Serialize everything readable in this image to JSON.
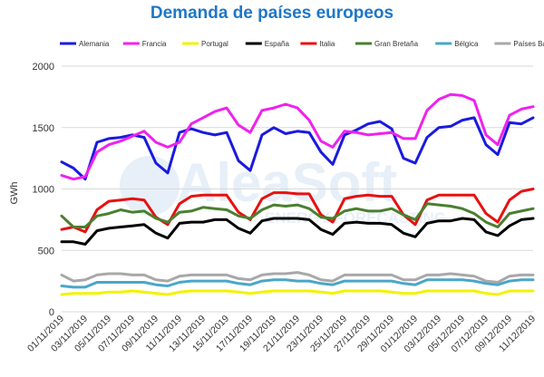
{
  "chart_data": {
    "type": "line",
    "title": "Demanda de países europeos",
    "ylabel": "GWh",
    "ylim": [
      0,
      2000
    ],
    "yticks": [
      0,
      500,
      1000,
      1500,
      2000
    ],
    "grid": "horizontal",
    "legend_position": "top",
    "watermark": {
      "brand": "AleaSoft",
      "tagline": "ENERGY FORECASTING"
    },
    "x_tick_labels": [
      "01/11/2019",
      "03/11/2019",
      "05/11/2019",
      "07/11/2019",
      "09/11/2019",
      "11/11/2019",
      "13/11/2019",
      "15/11/2019",
      "17/11/2019",
      "19/11/2019",
      "21/11/2019",
      "23/11/2019",
      "25/11/2019",
      "27/11/2019",
      "29/11/2019",
      "01/12/2019",
      "03/12/2019",
      "05/12/2019",
      "07/12/2019",
      "09/12/2019",
      "11/12/2019"
    ],
    "x": [
      "01/11/2019",
      "02/11/2019",
      "03/11/2019",
      "04/11/2019",
      "05/11/2019",
      "06/11/2019",
      "07/11/2019",
      "08/11/2019",
      "09/11/2019",
      "10/11/2019",
      "11/11/2019",
      "12/11/2019",
      "13/11/2019",
      "14/11/2019",
      "15/11/2019",
      "16/11/2019",
      "17/11/2019",
      "18/11/2019",
      "19/11/2019",
      "20/11/2019",
      "21/11/2019",
      "22/11/2019",
      "23/11/2019",
      "24/11/2019",
      "25/11/2019",
      "26/11/2019",
      "27/11/2019",
      "28/11/2019",
      "29/11/2019",
      "30/11/2019",
      "01/12/2019",
      "02/12/2019",
      "03/12/2019",
      "04/12/2019",
      "05/12/2019",
      "06/12/2019",
      "07/12/2019",
      "08/12/2019",
      "09/12/2019",
      "10/12/2019",
      "11/12/2019"
    ],
    "series": [
      {
        "name": "Alemania",
        "color": "#1a1adf",
        "values": [
          1220,
          1170,
          1080,
          1380,
          1410,
          1420,
          1440,
          1420,
          1210,
          1130,
          1460,
          1490,
          1460,
          1440,
          1460,
          1230,
          1150,
          1440,
          1500,
          1450,
          1470,
          1460,
          1300,
          1200,
          1440,
          1480,
          1530,
          1550,
          1490,
          1250,
          1210,
          1420,
          1500,
          1510,
          1560,
          1580,
          1360,
          1280,
          1540,
          1530,
          1580
        ]
      },
      {
        "name": "Francia",
        "color": "#ee22ee",
        "values": [
          1110,
          1080,
          1100,
          1300,
          1360,
          1390,
          1430,
          1470,
          1380,
          1340,
          1380,
          1530,
          1580,
          1630,
          1660,
          1520,
          1460,
          1640,
          1660,
          1690,
          1660,
          1560,
          1390,
          1340,
          1470,
          1460,
          1440,
          1450,
          1460,
          1410,
          1410,
          1640,
          1730,
          1770,
          1760,
          1720,
          1440,
          1360,
          1600,
          1650,
          1670
        ]
      },
      {
        "name": "Portugal",
        "color": "#f2f200",
        "values": [
          140,
          150,
          150,
          150,
          160,
          160,
          170,
          160,
          150,
          140,
          160,
          170,
          170,
          170,
          170,
          160,
          150,
          160,
          170,
          170,
          170,
          170,
          160,
          150,
          170,
          170,
          170,
          170,
          160,
          150,
          150,
          170,
          170,
          170,
          170,
          170,
          150,
          140,
          170,
          170,
          170
        ]
      },
      {
        "name": "España",
        "color": "#000000",
        "values": [
          570,
          570,
          550,
          660,
          680,
          690,
          700,
          710,
          640,
          600,
          720,
          730,
          730,
          750,
          750,
          680,
          640,
          740,
          760,
          760,
          760,
          750,
          670,
          630,
          720,
          730,
          720,
          720,
          710,
          640,
          610,
          720,
          740,
          740,
          760,
          750,
          650,
          620,
          700,
          750,
          760
        ]
      },
      {
        "name": "Italia",
        "color": "#e81010",
        "values": [
          670,
          690,
          650,
          830,
          900,
          910,
          920,
          910,
          770,
          710,
          880,
          940,
          950,
          950,
          950,
          810,
          750,
          920,
          970,
          970,
          960,
          960,
          790,
          730,
          920,
          940,
          950,
          940,
          940,
          790,
          710,
          910,
          950,
          950,
          950,
          950,
          800,
          730,
          910,
          980,
          1000
        ]
      },
      {
        "name": "Gran Bretaña",
        "color": "#4a7f2f",
        "values": [
          780,
          690,
          690,
          780,
          800,
          830,
          810,
          820,
          760,
          730,
          810,
          820,
          850,
          840,
          830,
          780,
          760,
          830,
          870,
          860,
          870,
          840,
          770,
          760,
          820,
          840,
          820,
          820,
          840,
          790,
          750,
          880,
          870,
          860,
          840,
          800,
          730,
          690,
          800,
          820,
          840
        ]
      },
      {
        "name": "Bélgica",
        "color": "#4aa6c8",
        "values": [
          210,
          200,
          200,
          240,
          240,
          240,
          240,
          240,
          220,
          210,
          240,
          250,
          250,
          250,
          250,
          230,
          220,
          250,
          260,
          260,
          250,
          250,
          230,
          220,
          250,
          250,
          250,
          250,
          250,
          230,
          220,
          260,
          260,
          260,
          260,
          250,
          230,
          220,
          250,
          260,
          260
        ]
      },
      {
        "name": "Países Bajos",
        "color": "#a8a8a8",
        "values": [
          300,
          250,
          260,
          300,
          310,
          310,
          300,
          300,
          260,
          250,
          290,
          300,
          300,
          300,
          300,
          270,
          260,
          300,
          310,
          310,
          320,
          300,
          260,
          250,
          300,
          300,
          300,
          300,
          300,
          260,
          260,
          300,
          300,
          310,
          300,
          290,
          250,
          240,
          290,
          300,
          300
        ]
      }
    ]
  }
}
